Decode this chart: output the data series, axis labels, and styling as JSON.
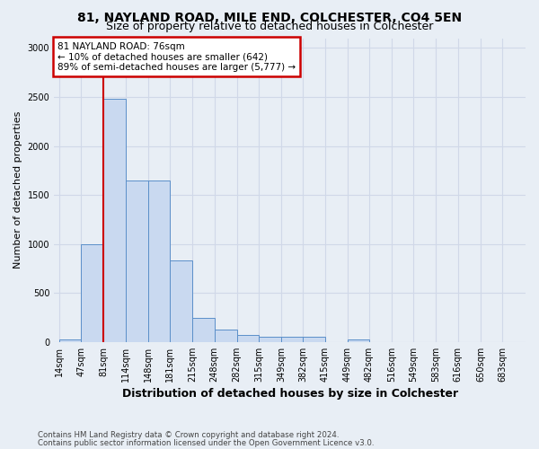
{
  "title1": "81, NAYLAND ROAD, MILE END, COLCHESTER, CO4 5EN",
  "title2": "Size of property relative to detached houses in Colchester",
  "xlabel": "Distribution of detached houses by size in Colchester",
  "ylabel": "Number of detached properties",
  "footnote1": "Contains HM Land Registry data © Crown copyright and database right 2024.",
  "footnote2": "Contains public sector information licensed under the Open Government Licence v3.0.",
  "bin_edges": [
    14,
    47,
    81,
    114,
    148,
    181,
    215,
    248,
    282,
    315,
    349,
    382,
    415,
    449,
    482,
    516,
    549,
    583,
    616,
    650,
    683
  ],
  "bar_heights": [
    30,
    1000,
    2480,
    1650,
    1650,
    830,
    250,
    130,
    70,
    50,
    50,
    50,
    0,
    30,
    0,
    0,
    0,
    0,
    0,
    0
  ],
  "bar_color": "#c9d9f0",
  "bar_edge_color": "#5b8fc9",
  "vline_x": 81,
  "vline_color": "#cc0000",
  "annotation_line1": "81 NAYLAND ROAD: 76sqm",
  "annotation_line2": "← 10% of detached houses are smaller (642)",
  "annotation_line3": "89% of semi-detached houses are larger (5,777) →",
  "annotation_box_color": "#cc0000",
  "annotation_bg_color": "#ffffff",
  "ylim": [
    0,
    3100
  ],
  "yticks": [
    0,
    500,
    1000,
    1500,
    2000,
    2500,
    3000
  ],
  "background_color": "#e8eef5",
  "grid_color": "#d0d8e8",
  "title1_fontsize": 10,
  "title2_fontsize": 9,
  "tick_label_fontsize": 7,
  "ylabel_fontsize": 8,
  "xlabel_fontsize": 9
}
